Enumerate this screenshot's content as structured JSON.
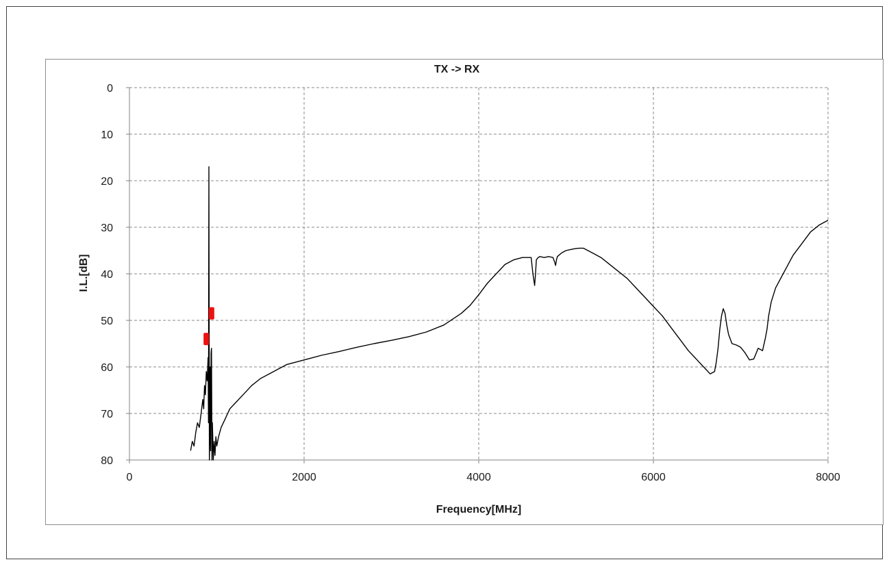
{
  "chart_data": {
    "type": "line",
    "title": "TX -> RX",
    "xlabel": "Frequency[MHz]",
    "ylabel": "I.L.[dB]",
    "xlim": [
      0,
      8000
    ],
    "ylim": [
      0,
      80
    ],
    "y_inverted": true,
    "xticks": [
      0,
      2000,
      4000,
      6000,
      8000
    ],
    "yticks": [
      0,
      10,
      20,
      30,
      40,
      50,
      60,
      70,
      80
    ],
    "grid": true,
    "grid_style": "dashed",
    "line_color": "#000000",
    "marker_color": "#ee1111",
    "series": [
      {
        "x": [
          700,
          720,
          740,
          760,
          780,
          800,
          820,
          840,
          850,
          860,
          870,
          880,
          890,
          900,
          905,
          910,
          915,
          920,
          925,
          930,
          935,
          940,
          945,
          950,
          955,
          960,
          970,
          980,
          990,
          1000,
          1020,
          1050,
          1100,
          1150,
          1200,
          1300,
          1400,
          1500,
          1600,
          1700,
          1800,
          1900,
          2000,
          2100,
          2200,
          2400,
          2600,
          2800,
          3000,
          3200,
          3400,
          3600,
          3800,
          3900,
          4000,
          4100,
          4200,
          4300,
          4400,
          4500,
          4600,
          4620,
          4640,
          4650,
          4660,
          4680,
          4700,
          4750,
          4800,
          4850,
          4870,
          4880,
          4890,
          4900,
          4950,
          5000,
          5050,
          5100,
          5150,
          5200,
          5250,
          5300,
          5400,
          5500,
          5600,
          5700,
          5800,
          5900,
          6000,
          6100,
          6200,
          6300,
          6400,
          6500,
          6550,
          6600,
          6650,
          6700,
          6720,
          6740,
          6760,
          6780,
          6800,
          6820,
          6840,
          6860,
          6880,
          6900,
          6950,
          7000,
          7050,
          7100,
          7150,
          7200,
          7250,
          7280,
          7300,
          7320,
          7350,
          7400,
          7500,
          7600,
          7700,
          7800,
          7900,
          8000
        ],
        "y": [
          78,
          76,
          77,
          74,
          72,
          73,
          70,
          67,
          69,
          64,
          66,
          61,
          63,
          58,
          72,
          17,
          80,
          75,
          60,
          78,
          57,
          56,
          80,
          72,
          76,
          80,
          76,
          79,
          75,
          77,
          75,
          73,
          71,
          69,
          68,
          66,
          64,
          62.5,
          61.5,
          60.5,
          59.5,
          59,
          58.5,
          58,
          57.5,
          56.7,
          55.8,
          55,
          54.3,
          53.5,
          52.5,
          51,
          48.5,
          46.8,
          44.5,
          42,
          40,
          38,
          37,
          36.5,
          36.5,
          40,
          42.5,
          40,
          37,
          36.5,
          36.3,
          36.5,
          36.3,
          36.5,
          37.5,
          38.2,
          37,
          36.3,
          35.5,
          35,
          34.8,
          34.6,
          34.5,
          34.5,
          35,
          35.5,
          36.5,
          38,
          39.5,
          41,
          43,
          45,
          47,
          49,
          51.5,
          54,
          56.5,
          58.5,
          59.5,
          60.5,
          61.5,
          61,
          59,
          56,
          52,
          49,
          47.5,
          48.5,
          51,
          53,
          54,
          55,
          55.3,
          55.8,
          57,
          58.5,
          58.3,
          56,
          56.5,
          54,
          52,
          49,
          46,
          43,
          39.5,
          36,
          33.5,
          31,
          29.5,
          28.5
        ]
      }
    ],
    "markers": [
      {
        "x": 880,
        "y": 54
      },
      {
        "x": 940,
        "y": 48.5
      }
    ]
  }
}
